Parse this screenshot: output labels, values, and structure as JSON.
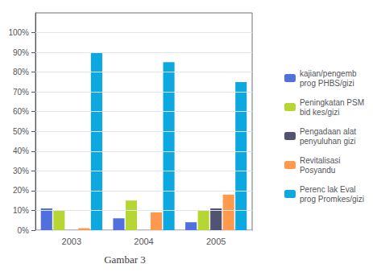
{
  "chart_data": {
    "type": "bar",
    "title": "Gambar 3",
    "categories": [
      "2003",
      "2004",
      "2005"
    ],
    "series": [
      {
        "name": "kajian/pengemb\nprog PHBS/gizi",
        "values": [
          11,
          6,
          4
        ]
      },
      {
        "name": "Peningkatan PSM\nbid kes/gizi",
        "values": [
          10,
          15,
          10
        ]
      },
      {
        "name": "Pengadaan alat\npenyuluhan gizi",
        "values": [
          0,
          0,
          11
        ]
      },
      {
        "name": "Revitalisasi\nPosyandu",
        "values": [
          1,
          9,
          18
        ]
      },
      {
        "name": "Perenc lak Eval\nprog Promkes/gizi",
        "values": [
          90,
          85,
          75
        ]
      }
    ],
    "ylim": [
      0,
      110
    ],
    "yticks": [
      {
        "value": 0,
        "label": "0%"
      },
      {
        "value": 10,
        "label": "10%"
      },
      {
        "value": 20,
        "label": "20%"
      },
      {
        "value": 30,
        "label": "30%"
      },
      {
        "value": 40,
        "label": "40%"
      },
      {
        "value": 50,
        "label": "50%"
      },
      {
        "value": 60,
        "label": "60%"
      },
      {
        "value": 70,
        "label": "70%"
      },
      {
        "value": 80,
        "label": "80%"
      },
      {
        "value": 90,
        "label": "90%"
      },
      {
        "value": 100,
        "label": "100%"
      }
    ],
    "grid": true,
    "legend": "right"
  }
}
